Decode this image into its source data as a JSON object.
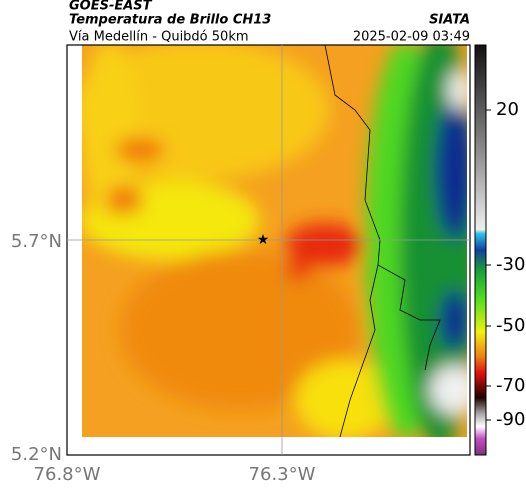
{
  "header": {
    "source": "GOES-EAST",
    "product": "Temperatura de Brillo CH13",
    "route": "Vía Medellín - Quibdó 50km",
    "agency": "SIATA",
    "timestamp": "2025-02-09 03:49"
  },
  "map": {
    "lat_labels": [
      "5.7°N",
      "5.2°N"
    ],
    "lon_labels": [
      "76.8°W",
      "76.3°W"
    ]
  },
  "colorbar": {
    "ticks": [
      20,
      -30,
      -50,
      -70,
      -90
    ]
  }
}
